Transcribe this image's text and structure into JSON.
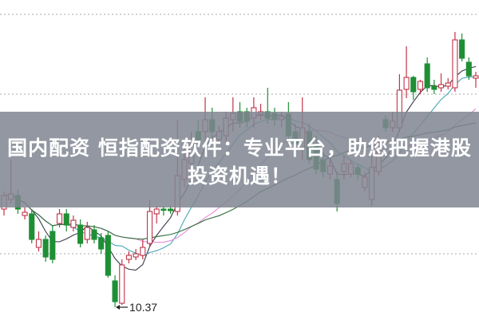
{
  "title": {
    "line1": "国内配资 恒指配资软件：专业平台，助您把握港股",
    "line2": "投资机遇！"
  },
  "chart_data": {
    "type": "candlestick",
    "title": "",
    "grid": "horizontal dotted",
    "colors": {
      "up": "#c2334a",
      "down": "#1f8f35",
      "ma5": "#3a3a4a",
      "ma10": "#4aa6b8",
      "ma20": "#e58ad8",
      "ma30": "#2f6b3a",
      "banner": "#808692"
    },
    "moving_averages": [
      5,
      10,
      20,
      30
    ],
    "low_annotation": {
      "label": "10.37",
      "value": 10.37
    },
    "ylim": [
      10.22,
      14.22
    ],
    "candles": [
      [
        11.6,
        11.82,
        11.52,
        11.77
      ],
      [
        11.72,
        12.22,
        11.67,
        11.79
      ],
      [
        11.77,
        11.84,
        11.54,
        11.6
      ],
      [
        11.52,
        11.62,
        11.47,
        11.56
      ],
      [
        11.54,
        11.6,
        11.17,
        11.22
      ],
      [
        11.12,
        11.32,
        11.07,
        11.22
      ],
      [
        11.22,
        11.27,
        10.94,
        11.0
      ],
      [
        11.32,
        11.4,
        10.92,
        10.97
      ],
      [
        11.42,
        11.6,
        11.37,
        11.54
      ],
      [
        11.54,
        11.6,
        11.32,
        11.4
      ],
      [
        11.37,
        11.52,
        11.32,
        11.46
      ],
      [
        11.4,
        11.47,
        11.12,
        11.17
      ],
      [
        11.22,
        11.44,
        11.17,
        11.37
      ],
      [
        11.34,
        11.4,
        11.17,
        11.22
      ],
      [
        11.24,
        11.3,
        11.04,
        11.1
      ],
      [
        11.27,
        11.32,
        10.74,
        10.77
      ],
      [
        10.7,
        10.77,
        10.37,
        10.44
      ],
      [
        10.42,
        10.97,
        10.4,
        10.9
      ],
      [
        10.97,
        11.07,
        10.92,
        11.02
      ],
      [
        11.0,
        11.1,
        10.96,
        11.04
      ],
      [
        11.02,
        11.22,
        10.97,
        11.12
      ],
      [
        11.17,
        11.72,
        11.12,
        11.57
      ],
      [
        11.54,
        11.64,
        11.42,
        11.6
      ],
      [
        11.6,
        11.64,
        11.52,
        11.59
      ],
      [
        11.6,
        11.64,
        11.54,
        11.58
      ],
      [
        11.57,
        12.72,
        11.52,
        12.02
      ],
      [
        11.97,
        12.37,
        11.87,
        12.22
      ],
      [
        12.17,
        12.57,
        12.12,
        12.47
      ],
      [
        12.57,
        12.72,
        12.42,
        12.47
      ],
      [
        12.57,
        13.0,
        12.27,
        12.72
      ],
      [
        12.72,
        12.87,
        12.47,
        12.57
      ],
      [
        12.47,
        12.64,
        12.42,
        12.57
      ],
      [
        12.52,
        12.82,
        12.42,
        12.74
      ],
      [
        12.72,
        13.0,
        12.57,
        12.8
      ],
      [
        12.82,
        12.94,
        12.62,
        12.7
      ],
      [
        12.82,
        12.87,
        12.62,
        12.7
      ],
      [
        12.74,
        13.0,
        12.62,
        12.87
      ],
      [
        12.79,
        12.92,
        12.72,
        12.82
      ],
      [
        12.82,
        13.12,
        12.67,
        12.74
      ],
      [
        12.8,
        12.87,
        12.64,
        12.72
      ],
      [
        12.72,
        12.82,
        12.62,
        12.76
      ],
      [
        12.79,
        12.94,
        12.47,
        12.52
      ],
      [
        12.57,
        12.67,
        12.32,
        12.42
      ],
      [
        12.37,
        13.0,
        12.22,
        12.62
      ],
      [
        12.57,
        12.67,
        12.17,
        12.22
      ],
      [
        12.42,
        12.52,
        12.04,
        12.1
      ],
      [
        12.22,
        12.32,
        12.0,
        12.07
      ],
      [
        12.04,
        12.22,
        11.97,
        12.14
      ],
      [
        11.97,
        12.07,
        11.57,
        11.67
      ],
      [
        12.07,
        12.27,
        11.97,
        12.17
      ],
      [
        12.04,
        12.22,
        12.0,
        12.17
      ],
      [
        12.12,
        12.17,
        11.97,
        12.04
      ],
      [
        11.87,
        12.07,
        11.82,
        12.0
      ],
      [
        11.72,
        12.27,
        11.64,
        12.12
      ],
      [
        12.07,
        12.52,
        12.02,
        12.42
      ],
      [
        12.72,
        12.77,
        12.57,
        12.62
      ],
      [
        12.62,
        12.82,
        12.57,
        12.7
      ],
      [
        12.62,
        13.29,
        12.57,
        13.09
      ],
      [
        13.1,
        13.64,
        12.99,
        13.25
      ],
      [
        13.25,
        13.27,
        12.97,
        13.07
      ],
      [
        13.1,
        13.22,
        13.04,
        13.2
      ],
      [
        13.42,
        13.5,
        13.07,
        13.12
      ],
      [
        13.14,
        13.22,
        13.04,
        13.1
      ],
      [
        13.12,
        13.3,
        13.07,
        13.16
      ],
      [
        13.14,
        13.24,
        13.1,
        13.18
      ],
      [
        13.12,
        13.82,
        13.07,
        13.72
      ],
      [
        13.72,
        13.8,
        13.45,
        13.49
      ],
      [
        13.44,
        13.5,
        13.22,
        13.27
      ],
      [
        13.24,
        13.32,
        13.12,
        13.27
      ]
    ]
  }
}
